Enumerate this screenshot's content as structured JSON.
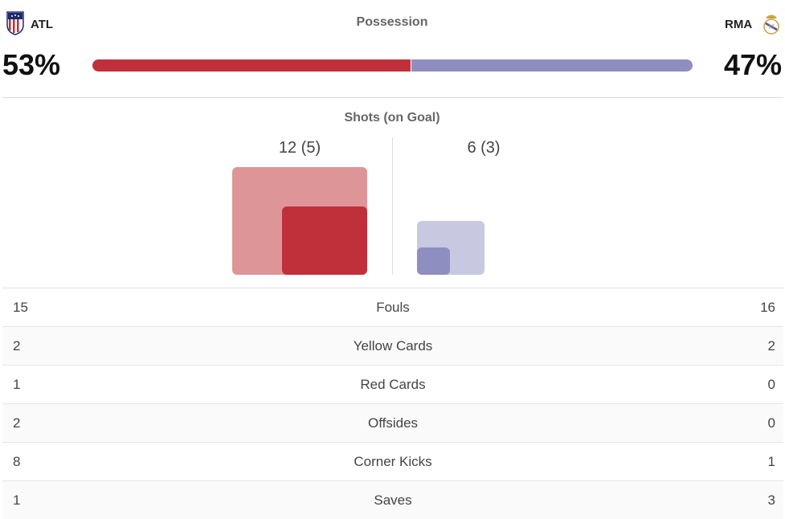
{
  "home": {
    "abbr": "ATL",
    "possession_pct": 53,
    "possession_label": "53%",
    "crest_icon": "atletico-crest-icon",
    "color": "#c0303a",
    "color_light": "#de9598"
  },
  "away": {
    "abbr": "RMA",
    "possession_pct": 47,
    "possession_label": "47%",
    "crest_icon": "real-madrid-crest-icon",
    "color": "#8e8ec1",
    "color_light": "#c8c8e1"
  },
  "possession": {
    "title": "Possession"
  },
  "shots": {
    "title": "Shots (on Goal)",
    "home": {
      "total": 12,
      "on_goal": 5,
      "label": "12 (5)"
    },
    "away": {
      "total": 6,
      "on_goal": 3,
      "label": "6 (3)"
    }
  },
  "stats": [
    {
      "label": "Fouls",
      "home": "15",
      "away": "16"
    },
    {
      "label": "Yellow Cards",
      "home": "2",
      "away": "2"
    },
    {
      "label": "Red Cards",
      "home": "1",
      "away": "0"
    },
    {
      "label": "Offsides",
      "home": "2",
      "away": "0"
    },
    {
      "label": "Corner Kicks",
      "home": "8",
      "away": "1"
    },
    {
      "label": "Saves",
      "home": "1",
      "away": "3"
    }
  ]
}
